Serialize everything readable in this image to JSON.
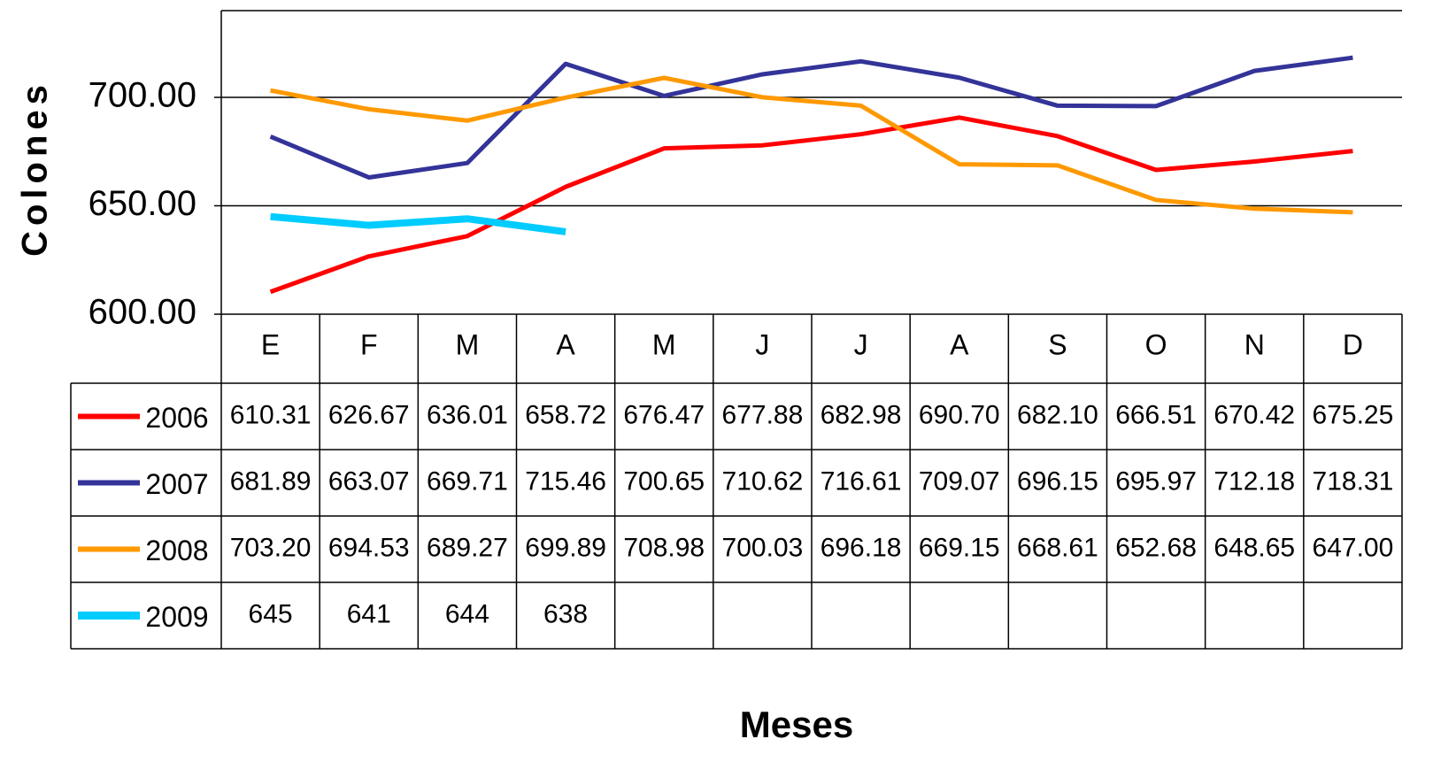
{
  "chart_data": {
    "type": "line",
    "y_label": "Colones",
    "x_label": "Meses",
    "categories": [
      "E",
      "F",
      "M",
      "A",
      "M",
      "J",
      "J",
      "A",
      "S",
      "O",
      "N",
      "D"
    ],
    "ylim": [
      600,
      740
    ],
    "yticks": [
      {
        "value": 600,
        "label": "600.00"
      },
      {
        "value": 650,
        "label": "650.00"
      },
      {
        "value": 700,
        "label": "700.00"
      }
    ],
    "grid": true,
    "series": [
      {
        "name": "2006",
        "color": "#ff0000",
        "values": [
          610.31,
          626.67,
          636.01,
          658.72,
          676.47,
          677.88,
          682.98,
          690.7,
          682.1,
          666.51,
          670.42,
          675.25
        ],
        "value_labels": [
          "610.31",
          "626.67",
          "636.01",
          "658.72",
          "676.47",
          "677.88",
          "682.98",
          "690.70",
          "682.10",
          "666.51",
          "670.42",
          "675.25"
        ]
      },
      {
        "name": "2007",
        "color": "#333399",
        "values": [
          681.89,
          663.07,
          669.71,
          715.46,
          700.65,
          710.62,
          716.61,
          709.07,
          696.15,
          695.97,
          712.18,
          718.31
        ],
        "value_labels": [
          "681.89",
          "663.07",
          "669.71",
          "715.46",
          "700.65",
          "710.62",
          "716.61",
          "709.07",
          "696.15",
          "695.97",
          "712.18",
          "718.31"
        ]
      },
      {
        "name": "2008",
        "color": "#ff9900",
        "values": [
          703.2,
          694.53,
          689.27,
          699.89,
          708.98,
          700.03,
          696.18,
          669.15,
          668.61,
          652.68,
          648.65,
          647.0
        ],
        "value_labels": [
          "703.20",
          "694.53",
          "689.27",
          "699.89",
          "708.98",
          "700.03",
          "696.18",
          "669.15",
          "668.61",
          "652.68",
          "648.65",
          "647.00"
        ]
      },
      {
        "name": "2009",
        "color": "#00ccff",
        "values": [
          645,
          641,
          644,
          638,
          null,
          null,
          null,
          null,
          null,
          null,
          null,
          null
        ]
      }
    ]
  }
}
